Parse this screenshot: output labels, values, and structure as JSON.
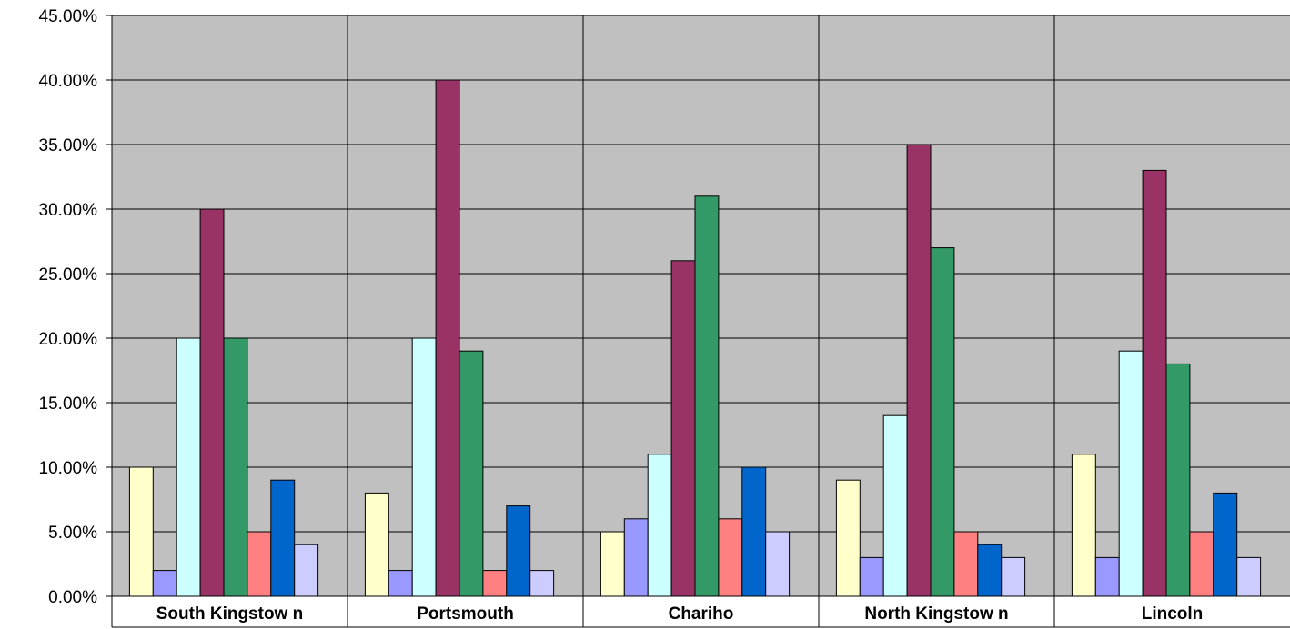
{
  "chart_data": {
    "type": "bar",
    "categories": [
      "South Kingstow n",
      "Portsmouth",
      "Chariho",
      "North Kingstow n",
      "Lincoln"
    ],
    "series": [
      {
        "color": "#FFFFCC",
        "values": [
          10.0,
          8.0,
          5.0,
          9.0,
          11.0
        ]
      },
      {
        "color": "#9999FF",
        "values": [
          2.0,
          2.0,
          6.0,
          3.0,
          3.0
        ]
      },
      {
        "color": "#CCFFFF",
        "values": [
          20.0,
          20.0,
          11.0,
          14.0,
          19.0
        ]
      },
      {
        "color": "#993366",
        "values": [
          30.0,
          40.0,
          26.0,
          35.0,
          33.0
        ]
      },
      {
        "color": "#339966",
        "values": [
          20.0,
          19.0,
          31.0,
          27.0,
          18.0
        ]
      },
      {
        "color": "#FF8080",
        "values": [
          5.0,
          2.0,
          6.0,
          5.0,
          5.0
        ]
      },
      {
        "color": "#0066CC",
        "values": [
          9.0,
          7.0,
          10.0,
          4.0,
          8.0
        ]
      },
      {
        "color": "#CCCCFF",
        "values": [
          4.0,
          2.0,
          5.0,
          3.0,
          3.0
        ]
      }
    ],
    "yticks": [
      "0.00%",
      "5.00%",
      "10.00%",
      "15.00%",
      "20.00%",
      "25.00%",
      "30.00%",
      "35.00%",
      "40.00%",
      "45.00%"
    ],
    "ylim": [
      0,
      45
    ],
    "ytick_step": 5,
    "grid": true,
    "plot_background": "#C0C0C0",
    "legend": "none",
    "title": "",
    "xlabel": "",
    "ylabel": ""
  }
}
